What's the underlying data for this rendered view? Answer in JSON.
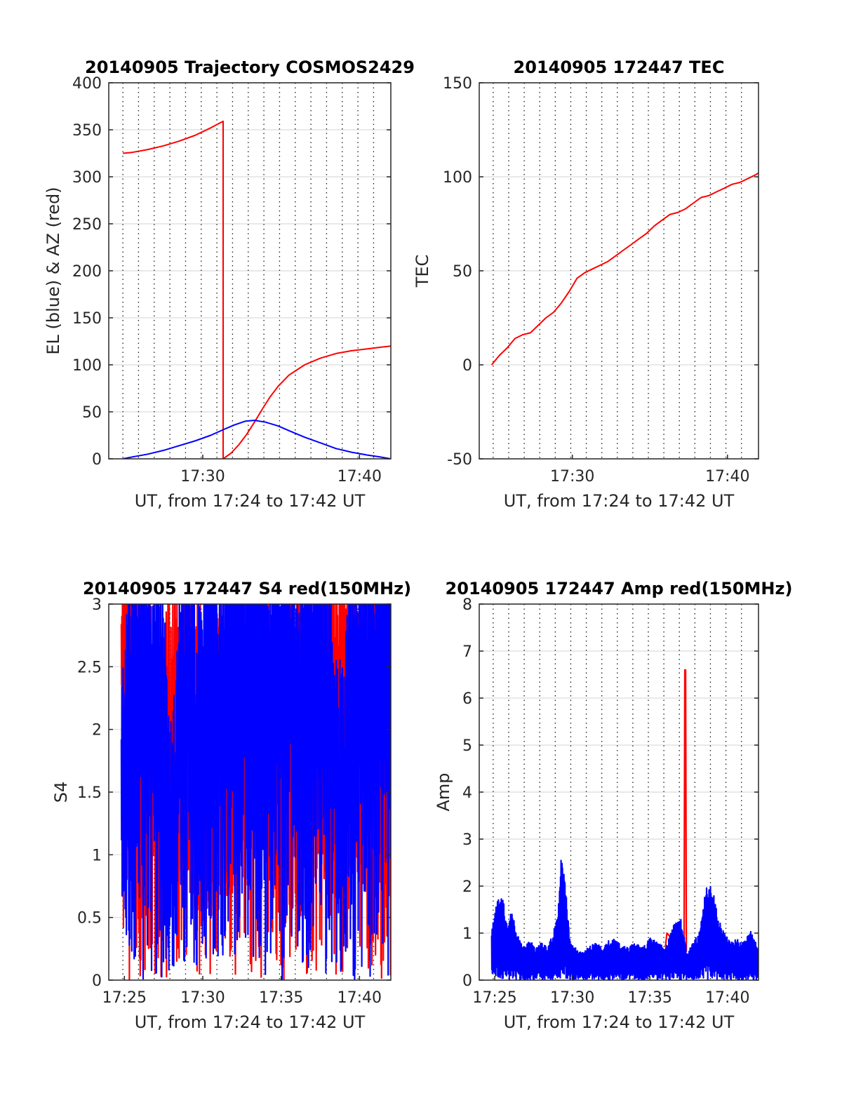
{
  "chart_data": [
    {
      "type": "line",
      "title": "20140905 Trajectory COSMOS2429",
      "xlabel": "UT, from 17:24 to 17:42 UT",
      "ylabel": "EL (blue) & AZ (red)",
      "xlim_minutes": [
        1044,
        1062
      ],
      "ylim": [
        0,
        400
      ],
      "yticks": [
        0,
        50,
        100,
        150,
        200,
        250,
        300,
        350,
        400
      ],
      "xticks": [
        {
          "t": 1050,
          "label": "17:30"
        },
        {
          "t": 1060,
          "label": "17:40"
        }
      ],
      "minor_gridlines_minutes": [
        1044.9,
        1045.9,
        1046.9,
        1047.9,
        1048.9,
        1049.9,
        1050.9,
        1051.9,
        1052.9,
        1053.9,
        1054.9,
        1055.9,
        1056.9,
        1057.9,
        1058.9,
        1059.9,
        1060.9
      ],
      "grid": true,
      "series": [
        {
          "name": "AZ",
          "color": "#ff0000",
          "x": [
            1044.9,
            1045.5,
            1046.5,
            1047.5,
            1048.5,
            1049.5,
            1050.5,
            1051.3,
            1051.3,
            1051.8,
            1052.3,
            1052.8,
            1053.3,
            1053.8,
            1054.3,
            1054.8,
            1055.5,
            1056.5,
            1057.5,
            1058.5,
            1059.5,
            1060.5,
            1061.5,
            1062
          ],
          "values": [
            325,
            326,
            329,
            333,
            338,
            344,
            352,
            359,
            0,
            6,
            15,
            26,
            39,
            53,
            66,
            77,
            89,
            100,
            107,
            112,
            115,
            117,
            119,
            120
          ]
        },
        {
          "name": "EL",
          "color": "#0000ff",
          "x": [
            1044.9,
            1045.5,
            1046.5,
            1047.5,
            1048.5,
            1049.5,
            1050.5,
            1051.3,
            1052.0,
            1052.7,
            1053.3,
            1054.0,
            1054.8,
            1055.5,
            1056.5,
            1057.5,
            1058.5,
            1059.5,
            1060.5,
            1061.3,
            1062
          ],
          "values": [
            0,
            2,
            5,
            9,
            14,
            19,
            25,
            31,
            36,
            40,
            41,
            39,
            35,
            30,
            23,
            17,
            11,
            7,
            4,
            2,
            0
          ]
        }
      ]
    },
    {
      "type": "line",
      "title": "20140905 172447 TEC",
      "xlabel": "UT, from 17:24 to 17:42 UT",
      "ylabel": "TEC",
      "xlim_minutes": [
        1044,
        1062
      ],
      "ylim": [
        -50,
        150
      ],
      "yticks": [
        -50,
        0,
        50,
        100,
        150
      ],
      "xticks": [
        {
          "t": 1050,
          "label": "17:30"
        },
        {
          "t": 1060,
          "label": "17:40"
        }
      ],
      "minor_gridlines_minutes": [
        1044.9,
        1045.9,
        1046.9,
        1047.9,
        1048.9,
        1049.9,
        1050.9,
        1051.9,
        1052.9,
        1053.9,
        1054.9,
        1055.9,
        1056.9,
        1057.9,
        1058.9,
        1059.9,
        1060.9
      ],
      "grid": true,
      "series": [
        {
          "name": "TEC",
          "color": "#ff0000",
          "x": [
            1044.8,
            1045.3,
            1045.8,
            1046.3,
            1046.8,
            1047.3,
            1047.8,
            1048.3,
            1048.8,
            1049.3,
            1049.8,
            1050.3,
            1050.8,
            1051.3,
            1051.8,
            1052.3,
            1052.8,
            1053.3,
            1053.8,
            1054.3,
            1054.8,
            1055.3,
            1055.8,
            1056.3,
            1056.8,
            1057.3,
            1057.8,
            1058.3,
            1058.8,
            1059.3,
            1059.8,
            1060.3,
            1060.8,
            1061.3,
            1061.8,
            1062
          ],
          "values": [
            0,
            5,
            9,
            14,
            16,
            17,
            21,
            25,
            28,
            33,
            39,
            46,
            49,
            51,
            53,
            55,
            58,
            61,
            64,
            67,
            70,
            74,
            77,
            80,
            81,
            83,
            86,
            89,
            90,
            92,
            94,
            96,
            97,
            99,
            101,
            102
          ]
        }
      ]
    },
    {
      "type": "line",
      "title": "20140905 172447 S4 red(150MHz)",
      "xlabel": "UT, from 17:24 to 17:42 UT",
      "ylabel": "S4",
      "xlim_minutes": [
        1044,
        1062
      ],
      "ylim": [
        0,
        3
      ],
      "yticks": [
        0,
        0.5,
        1,
        1.5,
        2,
        2.5,
        3
      ],
      "xticks": [
        {
          "t": 1045,
          "label": "17:25"
        },
        {
          "t": 1050,
          "label": "17:30"
        },
        {
          "t": 1055,
          "label": "17:35"
        },
        {
          "t": 1060,
          "label": "17:40"
        }
      ],
      "minor_gridlines_minutes": [
        1044.9,
        1045.9,
        1046.9,
        1047.9,
        1048.9,
        1049.9,
        1050.9,
        1051.9,
        1052.9,
        1053.9,
        1054.9,
        1055.9,
        1056.9,
        1057.9,
        1058.9,
        1059.9,
        1060.9
      ],
      "grid": true,
      "series": [
        {
          "name": "S4 (red)",
          "color": "#ff0000",
          "x": [
            1044.5,
            1045.5,
            1046.5,
            1047.5,
            1048.5,
            1049.5,
            1050.5,
            1051.5,
            1052.5,
            1053.5,
            1054.5,
            1055.5,
            1056.5,
            1057.5,
            1058.5,
            1059.5,
            1060.5,
            1061.5
          ],
          "values": [
            2.9,
            2.7,
            2.0,
            1.8,
            2.1,
            1.9,
            1.9,
            2.0,
            2.1,
            2.2,
            2.0,
            2.2,
            2.1,
            2.3,
            2.4,
            2.5,
            2.3,
            2.2
          ]
        },
        {
          "name": "S4 (blue)",
          "color": "#0000ff",
          "x": [
            1044.5,
            1045.0,
            1045.5,
            1046.0,
            1046.5,
            1047.0,
            1047.5,
            1048.0,
            1048.5,
            1049.0,
            1049.5,
            1050.0,
            1050.5,
            1051.0,
            1051.5,
            1052.0,
            1052.5,
            1053.0,
            1053.5,
            1054.0,
            1054.5,
            1055.0,
            1055.5,
            1056.0,
            1056.5,
            1057.0,
            1057.5,
            1058.0,
            1058.5,
            1059.0,
            1059.5,
            1060.0,
            1060.5,
            1061.0,
            1061.5,
            1062.0
          ],
          "values": [
            2.0,
            1.5,
            2.3,
            2.6,
            2.4,
            2.1,
            2.5,
            0.9,
            2.0,
            2.7,
            1.9,
            2.3,
            2.6,
            2.2,
            2.5,
            2.7,
            2.6,
            2.4,
            2.6,
            2.8,
            2.4,
            2.7,
            2.9,
            2.0,
            2.6,
            2.9,
            2.5,
            2.2,
            1.6,
            1.3,
            2.4,
            2.7,
            2.5,
            2.6,
            2.8,
            2.7
          ]
        }
      ]
    },
    {
      "type": "line",
      "title": "20140905 172447 Amp red(150MHz)",
      "xlabel": "UT, from 17:24 to 17:42 UT",
      "ylabel": "Amp",
      "xlim_minutes": [
        1044,
        1062
      ],
      "ylim": [
        0,
        8
      ],
      "yticks": [
        0,
        1,
        2,
        3,
        4,
        5,
        6,
        7,
        8
      ],
      "xticks": [
        {
          "t": 1045,
          "label": "17:25"
        },
        {
          "t": 1050,
          "label": "17:30"
        },
        {
          "t": 1055,
          "label": "17:35"
        },
        {
          "t": 1060,
          "label": "17:40"
        }
      ],
      "minor_gridlines_minutes": [
        1044.9,
        1045.9,
        1046.9,
        1047.9,
        1048.9,
        1049.9,
        1050.9,
        1051.9,
        1052.9,
        1053.9,
        1054.9,
        1055.9,
        1056.9,
        1057.9,
        1058.9,
        1059.9,
        1060.9
      ],
      "grid": true,
      "series": [
        {
          "name": "Amp (red)",
          "color": "#ff0000",
          "x": [
            1056.0,
            1056.1,
            1057.2,
            1057.25,
            1057.3,
            1057.35
          ],
          "values": [
            0.7,
            1.0,
            0.6,
            6.6,
            6.6,
            0.6
          ]
        },
        {
          "name": "Amp (blue)",
          "color": "#0000ff",
          "x": [
            1044.8,
            1045.2,
            1045.5,
            1045.8,
            1046.1,
            1046.4,
            1046.8,
            1047.2,
            1047.6,
            1048.0,
            1048.4,
            1048.8,
            1049.1,
            1049.3,
            1049.5,
            1049.7,
            1049.9,
            1050.2,
            1050.6,
            1051.0,
            1051.5,
            1052.0,
            1052.5,
            1053.0,
            1053.5,
            1054.0,
            1054.5,
            1055.0,
            1055.5,
            1056.0,
            1056.5,
            1057.0,
            1057.4,
            1057.8,
            1058.2,
            1058.6,
            1058.9,
            1059.2,
            1059.5,
            1059.8,
            1060.2,
            1060.6,
            1061.0,
            1061.5,
            1062.0
          ],
          "values": [
            1.0,
            1.5,
            1.6,
            1.0,
            1.3,
            0.9,
            0.6,
            0.8,
            0.6,
            0.7,
            0.6,
            0.9,
            1.4,
            2.4,
            2.0,
            1.2,
            0.7,
            0.6,
            0.5,
            0.6,
            0.7,
            0.6,
            0.8,
            0.7,
            0.6,
            0.7,
            0.6,
            0.8,
            0.7,
            0.6,
            1.0,
            1.2,
            0.5,
            0.7,
            0.9,
            1.7,
            1.8,
            1.5,
            1.1,
            0.9,
            0.7,
            0.8,
            0.7,
            0.9,
            0.6
          ]
        }
      ]
    }
  ]
}
